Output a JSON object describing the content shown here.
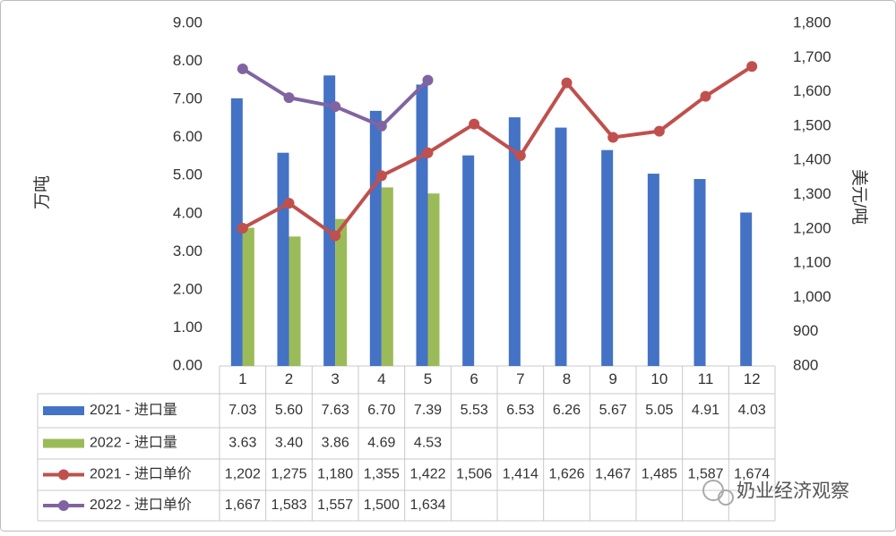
{
  "chart_data": {
    "type": "bar_line_table",
    "categories": [
      "1",
      "2",
      "3",
      "4",
      "5",
      "6",
      "7",
      "8",
      "9",
      "10",
      "11",
      "12"
    ],
    "ylabel": "万吨",
    "y2label": "美元/吨",
    "ylim": [
      0,
      9
    ],
    "yticks": [
      {
        "value": 0,
        "label": "0.00"
      },
      {
        "value": 1,
        "label": "1.00"
      },
      {
        "value": 2,
        "label": "2.00"
      },
      {
        "value": 3,
        "label": "3.00"
      },
      {
        "value": 4,
        "label": "4.00"
      },
      {
        "value": 5,
        "label": "5.00"
      },
      {
        "value": 6,
        "label": "6.00"
      },
      {
        "value": 7,
        "label": "7.00"
      },
      {
        "value": 8,
        "label": "8.00"
      },
      {
        "value": 9,
        "label": "9.00"
      }
    ],
    "y2lim": [
      800,
      1800
    ],
    "y2ticks": [
      800,
      900,
      {
        "value": 1000,
        "label": "1,000"
      },
      {
        "value": 1100,
        "label": "1,100"
      },
      {
        "value": 1200,
        "label": "1,200"
      },
      {
        "value": 1300,
        "label": "1,300"
      },
      {
        "value": 1400,
        "label": "1,400"
      },
      {
        "value": 1500,
        "label": "1,500"
      },
      {
        "value": 1600,
        "label": "1,600"
      },
      {
        "value": 1700,
        "label": "1,700"
      },
      {
        "value": 1800,
        "label": "1,800"
      }
    ],
    "series": [
      {
        "name": "2021 - 进口量",
        "kind": "bar",
        "color": "#4472c4",
        "values": [
          7.03,
          5.6,
          7.63,
          6.7,
          7.39,
          5.53,
          6.53,
          6.26,
          5.67,
          5.05,
          4.91,
          4.03
        ],
        "value_labels": [
          "7.03",
          "5.60",
          "7.63",
          "6.70",
          "7.39",
          "5.53",
          "6.53",
          "6.26",
          "5.67",
          "5.05",
          "4.91",
          "4.03"
        ]
      },
      {
        "name": "2022 - 进口量",
        "kind": "bar",
        "color": "#9bbb59",
        "values": [
          3.63,
          3.4,
          3.86,
          4.69,
          4.53,
          null,
          null,
          null,
          null,
          null,
          null,
          null
        ],
        "value_labels": [
          "3.63",
          "3.40",
          "3.86",
          "4.69",
          "4.53",
          null,
          null,
          null,
          null,
          null,
          null,
          null
        ]
      },
      {
        "name": "2021 - 进口单价",
        "kind": "line",
        "axis": "y2",
        "color": "#c0504d",
        "values": [
          1202,
          1275,
          1180,
          1355,
          1422,
          1506,
          1414,
          1626,
          1467,
          1485,
          1587,
          1674
        ],
        "value_labels": [
          "1,202",
          "1,275",
          "1,180",
          "1,355",
          "1,422",
          "1,506",
          "1,414",
          "1,626",
          "1,467",
          "1,485",
          "1,587",
          "1,674"
        ]
      },
      {
        "name": "2022 - 进口单价",
        "kind": "line",
        "axis": "y2",
        "color": "#8064a2",
        "values": [
          1667,
          1583,
          1557,
          1500,
          1634,
          null,
          null,
          null,
          null,
          null,
          null,
          null
        ],
        "value_labels": [
          "1,667",
          "1,583",
          "1,557",
          "1,500",
          "1,634",
          null,
          null,
          null,
          null,
          null,
          null,
          null
        ]
      }
    ],
    "annotation": "奶业经济观察"
  }
}
